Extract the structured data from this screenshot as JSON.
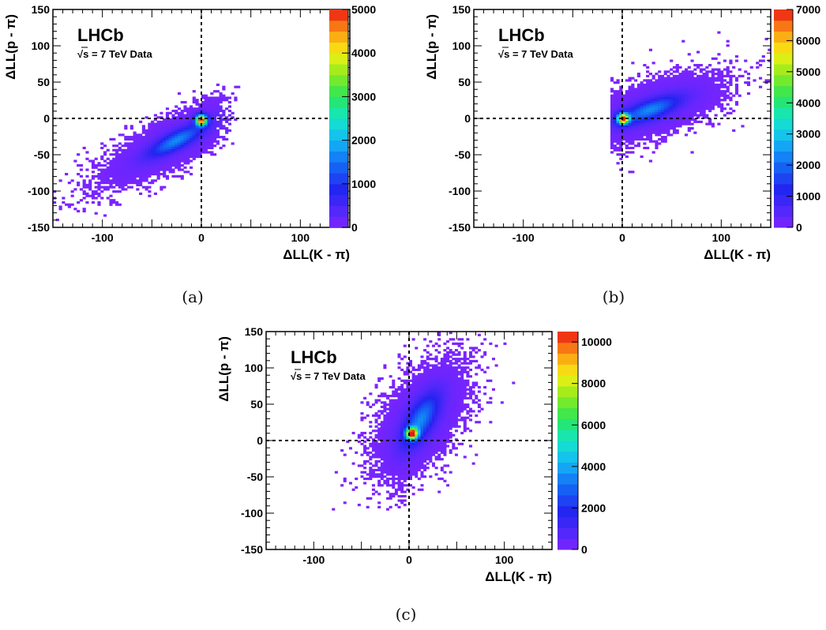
{
  "figure": {
    "captions": [
      "(a)",
      "(b)",
      "(c)"
    ]
  },
  "chart_data": [
    {
      "type": "heatmap",
      "panel": "(a)",
      "title": "LHCb",
      "subtitle": "√s = 7 TeV Data",
      "xlabel": "ΔLL(K - π)",
      "ylabel": "ΔLL(p - π)",
      "xlim": [
        -150,
        150
      ],
      "ylim": [
        -150,
        150
      ],
      "xticks": [
        "-100",
        "0",
        "100"
      ],
      "yticks": [
        "-150",
        "-100",
        "-50",
        "0",
        "50",
        "100",
        "150"
      ],
      "z_range": [
        0,
        5000
      ],
      "zticks": [
        "0",
        "1000",
        "2000",
        "3000",
        "4000",
        "5000"
      ],
      "peak": {
        "x": 0,
        "y": -2,
        "z": 5000
      },
      "distribution": {
        "center": [
          -25,
          -30
        ],
        "orientation_deg": 37,
        "core_sigma": [
          22,
          7
        ],
        "tail_sigma": [
          55,
          17
        ],
        "x_max": 10
      },
      "cut_lines": {
        "x": 0,
        "y": 0
      },
      "grid": false,
      "palette": "rainbow"
    },
    {
      "type": "heatmap",
      "panel": "(b)",
      "title": "LHCb",
      "subtitle": "√s = 7 TeV Data",
      "xlabel": "ΔLL(K - π)",
      "ylabel": "ΔLL(p - π)",
      "xlim": [
        -150,
        150
      ],
      "ylim": [
        -150,
        150
      ],
      "xticks": [
        "-100",
        "0",
        "100"
      ],
      "yticks": [
        "-150",
        "-100",
        "-50",
        "0",
        "50",
        "100",
        "150"
      ],
      "z_range": [
        0,
        7000
      ],
      "zticks": [
        "0",
        "1000",
        "2000",
        "3000",
        "4000",
        "5000",
        "6000",
        "7000"
      ],
      "peak": {
        "x": 1,
        "y": 0,
        "z": 7000
      },
      "distribution": {
        "center": [
          28,
          12
        ],
        "orientation_deg": 28,
        "core_sigma": [
          22,
          8
        ],
        "tail_sigma": [
          48,
          20
        ],
        "x_min": -8
      },
      "cut_lines": {
        "x": 0,
        "y": 0
      },
      "grid": false,
      "palette": "rainbow"
    },
    {
      "type": "heatmap",
      "panel": "(c)",
      "title": "LHCb",
      "subtitle": "√s = 7 TeV Data",
      "xlabel": "ΔLL(K - π)",
      "ylabel": "ΔLL(p - π)",
      "xlim": [
        -150,
        150
      ],
      "ylim": [
        -150,
        150
      ],
      "xticks": [
        "-100",
        "0",
        "100"
      ],
      "yticks": [
        "-150",
        "-100",
        "-50",
        "0",
        "50",
        "100",
        "150"
      ],
      "z_range": [
        0,
        10500
      ],
      "zticks": [
        "0",
        "2000",
        "4000",
        "6000",
        "8000",
        "10000"
      ],
      "peak": {
        "x": 3,
        "y": 10,
        "z": 10500
      },
      "distribution": {
        "center": [
          12,
          28
        ],
        "orientation_deg": 68,
        "core_sigma": [
          26,
          9
        ],
        "tail_sigma": [
          50,
          22
        ],
        "y_min": -95
      },
      "cut_lines": {
        "x": 0,
        "y": 0
      },
      "grid": false,
      "palette": "rainbow"
    }
  ]
}
